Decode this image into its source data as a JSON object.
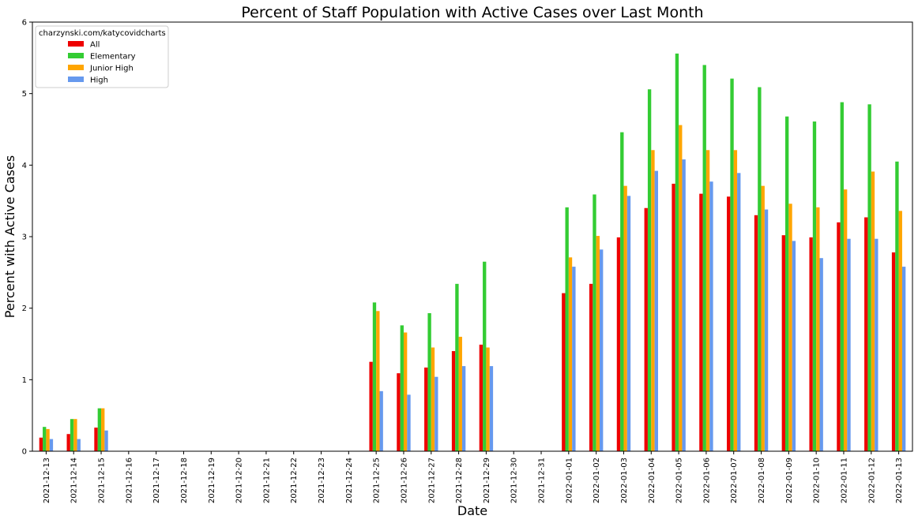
{
  "chart_data": {
    "type": "bar",
    "title": "Percent of Staff Population with Active Cases over Last Month",
    "xlabel": "Date",
    "ylabel": "Percent with Active Cases",
    "ylim": [
      0,
      6
    ],
    "yticks": [
      "0",
      "1",
      "2",
      "3",
      "4",
      "5",
      "6"
    ],
    "grid": false,
    "legend_title": "charzynski.com/katycovidcharts",
    "legend_position": "top-left",
    "categories": [
      "2021-12-13",
      "2021-12-14",
      "2021-12-15",
      "2021-12-16",
      "2021-12-17",
      "2021-12-18",
      "2021-12-19",
      "2021-12-20",
      "2021-12-21",
      "2021-12-22",
      "2021-12-23",
      "2021-12-24",
      "2021-12-25",
      "2021-12-26",
      "2021-12-27",
      "2021-12-28",
      "2021-12-29",
      "2021-12-30",
      "2021-12-31",
      "2022-01-01",
      "2022-01-02",
      "2022-01-03",
      "2022-01-04",
      "2022-01-05",
      "2022-01-06",
      "2022-01-07",
      "2022-01-08",
      "2022-01-09",
      "2022-01-10",
      "2022-01-11",
      "2022-01-12",
      "2022-01-13"
    ],
    "series": [
      {
        "name": "All",
        "color": "#ee0000",
        "values": [
          0.19,
          0.24,
          0.33,
          0,
          0,
          0,
          0,
          0,
          0,
          0,
          0,
          0,
          1.25,
          1.09,
          1.17,
          1.4,
          1.49,
          0,
          0,
          2.21,
          2.34,
          2.99,
          3.4,
          3.74,
          3.6,
          3.56,
          3.3,
          3.02,
          2.99,
          3.2,
          3.27,
          2.78
        ]
      },
      {
        "name": "Elementary",
        "color": "#33cc33",
        "values": [
          0.34,
          0.45,
          0.6,
          0,
          0,
          0,
          0,
          0,
          0,
          0,
          0,
          0,
          2.08,
          1.76,
          1.93,
          2.34,
          2.65,
          0,
          0,
          3.41,
          3.59,
          4.46,
          5.06,
          5.56,
          5.4,
          5.21,
          5.09,
          4.68,
          4.61,
          4.88,
          4.85,
          4.05
        ]
      },
      {
        "name": "Junior High",
        "color": "#ffa500",
        "values": [
          0.31,
          0.45,
          0.6,
          0,
          0,
          0,
          0,
          0,
          0,
          0,
          0,
          0,
          1.96,
          1.66,
          1.45,
          1.6,
          1.45,
          0,
          0,
          2.71,
          3.01,
          3.71,
          4.21,
          4.56,
          4.21,
          4.21,
          3.71,
          3.46,
          3.41,
          3.66,
          3.91,
          3.36
        ]
      },
      {
        "name": "High",
        "color": "#6699ee",
        "values": [
          0.17,
          0.17,
          0.29,
          0,
          0,
          0,
          0,
          0,
          0,
          0,
          0,
          0,
          0.84,
          0.79,
          1.04,
          1.19,
          1.19,
          0,
          0,
          2.58,
          2.82,
          3.57,
          3.92,
          4.08,
          3.77,
          3.89,
          3.38,
          2.94,
          2.7,
          2.97,
          2.97,
          2.58
        ]
      }
    ]
  }
}
